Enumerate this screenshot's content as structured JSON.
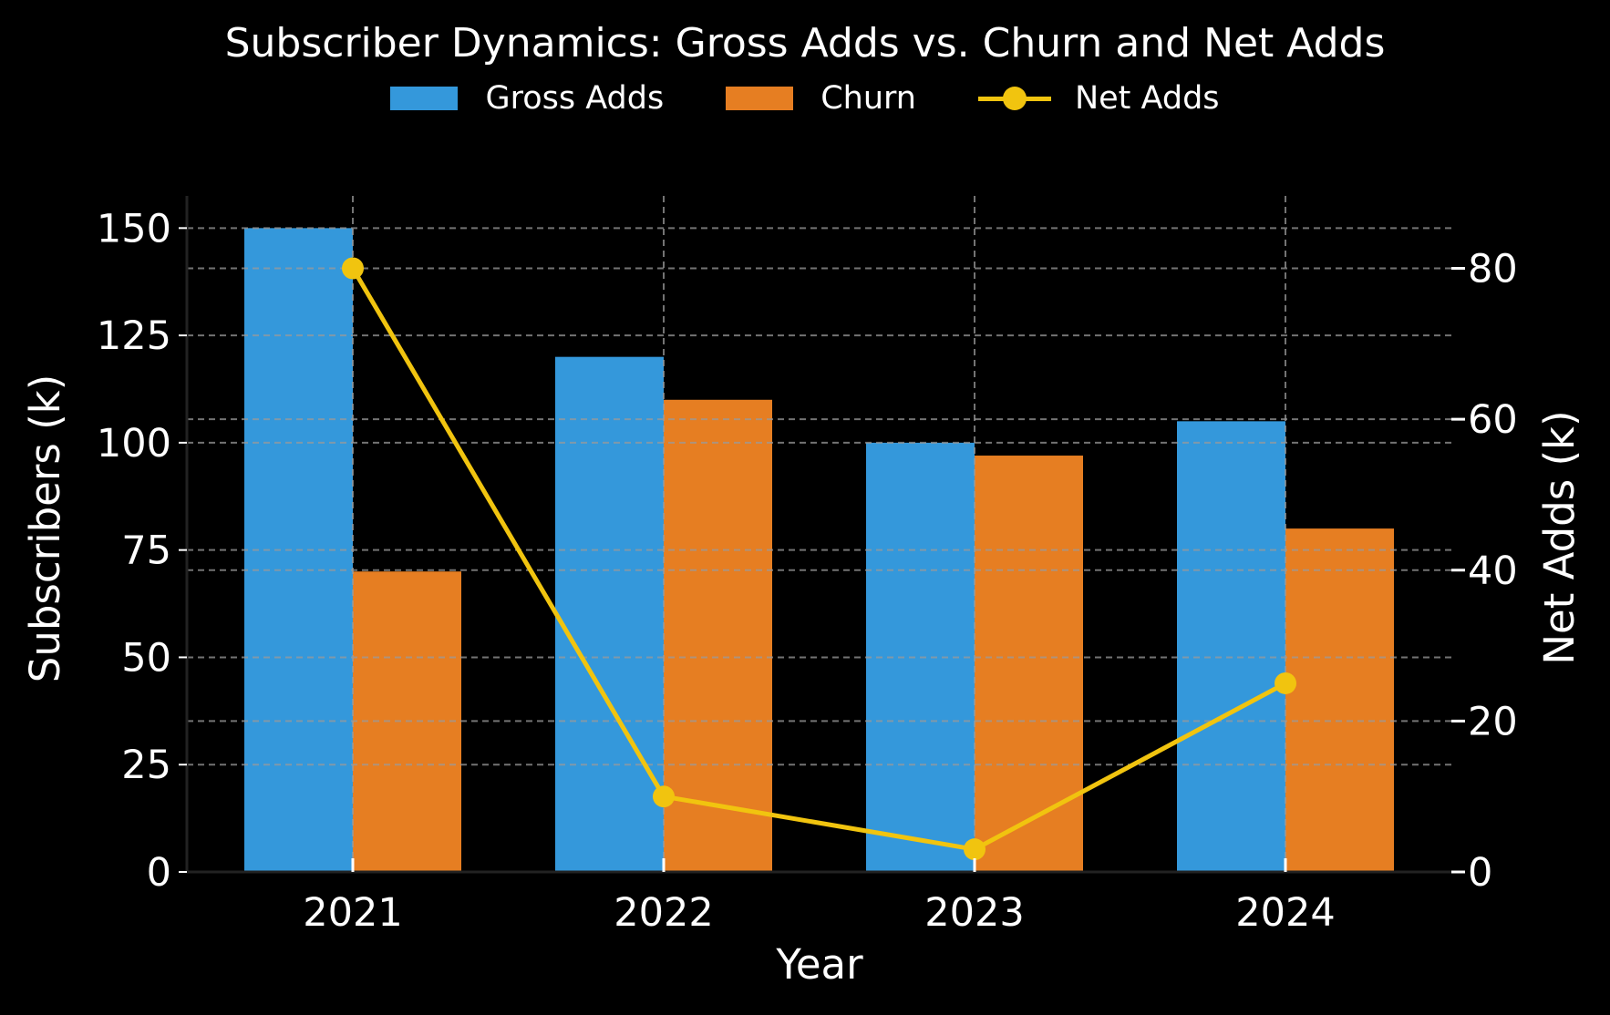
{
  "chart_data": {
    "type": "bar",
    "title": "Subscriber Dynamics: Gross Adds vs. Churn and Net Adds",
    "xlabel": "Year",
    "ylabel": "Subscribers (k)",
    "y2label": "Net Adds (k)",
    "categories": [
      "2021",
      "2022",
      "2023",
      "2024"
    ],
    "ylim": [
      0,
      157.5
    ],
    "y2lim": [
      0,
      89.6
    ],
    "yticks": [
      0,
      25,
      50,
      75,
      100,
      125,
      150
    ],
    "y2ticks": [
      0,
      20,
      40,
      60,
      80
    ],
    "grid": true,
    "legend_position": "top-center",
    "series": [
      {
        "name": "Gross Adds",
        "type": "bar",
        "axis": "left",
        "color": "#3498db",
        "values": [
          150,
          120,
          100,
          105
        ]
      },
      {
        "name": "Churn",
        "type": "bar",
        "axis": "left",
        "color": "#e67e22",
        "values": [
          70,
          110,
          97,
          80
        ]
      },
      {
        "name": "Net Adds",
        "type": "line",
        "axis": "right",
        "color": "#f1c40f",
        "values": [
          80,
          10,
          3,
          25
        ]
      }
    ]
  }
}
